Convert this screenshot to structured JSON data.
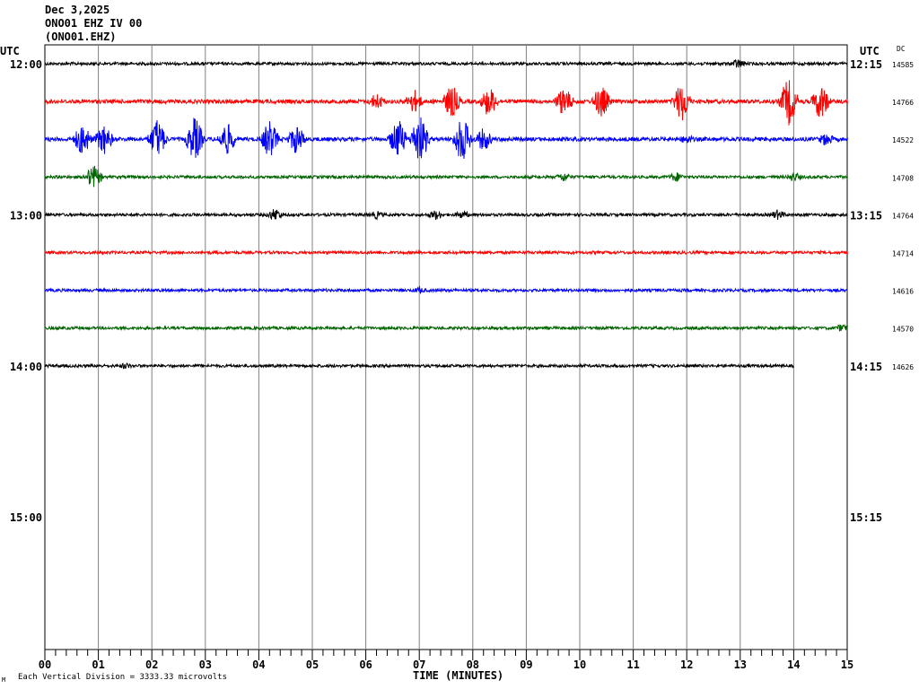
{
  "header": {
    "date": "Dec 3,2025",
    "station": "ONO01 EHZ IV 00",
    "code": "(ONO01.EHZ)"
  },
  "left_utc": "UTC",
  "right_utc": "UTC",
  "dc_header": "DC",
  "footer_mark": "M",
  "footer_note": "Each Vertical Division = 3333.33 microvolts",
  "colors": {
    "black": "#000000",
    "red": "#ff0000",
    "blue": "#0000ff",
    "green": "#006400",
    "grid": "#808080"
  },
  "chart_data": {
    "type": "line",
    "xlabel": "TIME (MINUTES)",
    "xlim": [
      0,
      15
    ],
    "x_ticks": [
      "00",
      "01",
      "02",
      "03",
      "04",
      "05",
      "06",
      "07",
      "08",
      "09",
      "10",
      "11",
      "12",
      "13",
      "14",
      "15"
    ],
    "traces": [
      {
        "left_label": "12:00",
        "right_label": "12:15",
        "dc": "14585",
        "color": "black",
        "amplitude": "low",
        "end_minute": 15,
        "events": [
          [
            12.95,
            6
          ]
        ]
      },
      {
        "left_label": "",
        "right_label": "",
        "dc": "14766",
        "color": "red",
        "amplitude": "medium",
        "end_minute": 15,
        "events": [
          [
            6.2,
            10
          ],
          [
            6.9,
            14
          ],
          [
            7.6,
            20
          ],
          [
            8.3,
            18
          ],
          [
            9.7,
            18
          ],
          [
            10.4,
            20
          ],
          [
            11.9,
            24
          ],
          [
            13.9,
            28
          ],
          [
            14.5,
            22
          ]
        ]
      },
      {
        "left_label": "",
        "right_label": "",
        "dc": "14522",
        "color": "blue",
        "amplitude": "medium",
        "end_minute": 15,
        "events": [
          [
            0.7,
            20
          ],
          [
            1.1,
            18
          ],
          [
            2.1,
            24
          ],
          [
            2.8,
            26
          ],
          [
            3.4,
            20
          ],
          [
            4.2,
            22
          ],
          [
            4.7,
            18
          ],
          [
            6.6,
            24
          ],
          [
            7.0,
            30
          ],
          [
            7.8,
            28
          ],
          [
            8.2,
            14
          ],
          [
            12.0,
            6
          ],
          [
            14.6,
            8
          ]
        ]
      },
      {
        "left_label": "",
        "right_label": "",
        "dc": "14708",
        "color": "green",
        "amplitude": "low",
        "end_minute": 15,
        "events": [
          [
            0.9,
            14
          ],
          [
            9.7,
            6
          ],
          [
            11.8,
            6
          ],
          [
            14.0,
            6
          ]
        ]
      },
      {
        "left_label": "13:00",
        "right_label": "13:15",
        "dc": "14764",
        "color": "black",
        "amplitude": "low",
        "end_minute": 15,
        "events": [
          [
            4.3,
            8
          ],
          [
            6.2,
            5
          ],
          [
            7.3,
            6
          ],
          [
            7.8,
            5
          ],
          [
            13.7,
            6
          ]
        ]
      },
      {
        "left_label": "",
        "right_label": "",
        "dc": "14714",
        "color": "red",
        "amplitude": "low",
        "end_minute": 15,
        "events": []
      },
      {
        "left_label": "",
        "right_label": "",
        "dc": "14616",
        "color": "blue",
        "amplitude": "low",
        "end_minute": 15,
        "events": [
          [
            7.0,
            4
          ]
        ]
      },
      {
        "left_label": "",
        "right_label": "",
        "dc": "14570",
        "color": "green",
        "amplitude": "low",
        "end_minute": 15,
        "events": [
          [
            14.9,
            5
          ]
        ]
      },
      {
        "left_label": "14:00",
        "right_label": "14:15",
        "dc": "14626",
        "color": "black",
        "amplitude": "low",
        "end_minute": 14,
        "events": [
          [
            1.5,
            4
          ]
        ]
      },
      {
        "left_label": "",
        "right_label": "",
        "dc": "",
        "color": "red",
        "amplitude": "none",
        "end_minute": 0,
        "events": []
      },
      {
        "left_label": "",
        "right_label": "",
        "dc": "",
        "color": "blue",
        "amplitude": "none",
        "end_minute": 0,
        "events": []
      },
      {
        "left_label": "",
        "right_label": "",
        "dc": "",
        "color": "green",
        "amplitude": "none",
        "end_minute": 0,
        "events": []
      },
      {
        "left_label": "15:00",
        "right_label": "15:15",
        "dc": "",
        "color": "black",
        "amplitude": "none",
        "end_minute": 0,
        "events": []
      }
    ]
  }
}
